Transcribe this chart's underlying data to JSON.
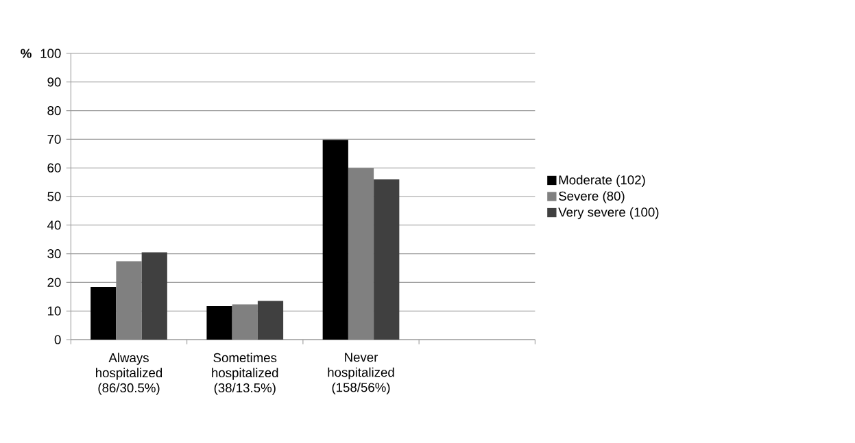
{
  "chart_data": {
    "type": "bar",
    "ylabel": "%",
    "categories": [
      "Always hospitalized (86/30.5%)",
      "Sometimes hospitalized (38/13.5%)",
      "Never hospitalized (158/56%)",
      null
    ],
    "series": [
      {
        "name": "Moderate (102)",
        "color": "#000000",
        "values": [
          18.4,
          11.7,
          69.8,
          null
        ]
      },
      {
        "name": "Severe (80)",
        "color": "#808080",
        "values": [
          27.4,
          12.3,
          60,
          null
        ]
      },
      {
        "name": "Very severe (100)",
        "color": "#404040",
        "values": [
          30.5,
          13.5,
          56,
          null
        ]
      }
    ],
    "ylim": [
      0,
      100
    ],
    "yticks": [
      0,
      10,
      20,
      30,
      40,
      50,
      60,
      70,
      80,
      90,
      100
    ],
    "grid": "y",
    "legend": "right"
  }
}
